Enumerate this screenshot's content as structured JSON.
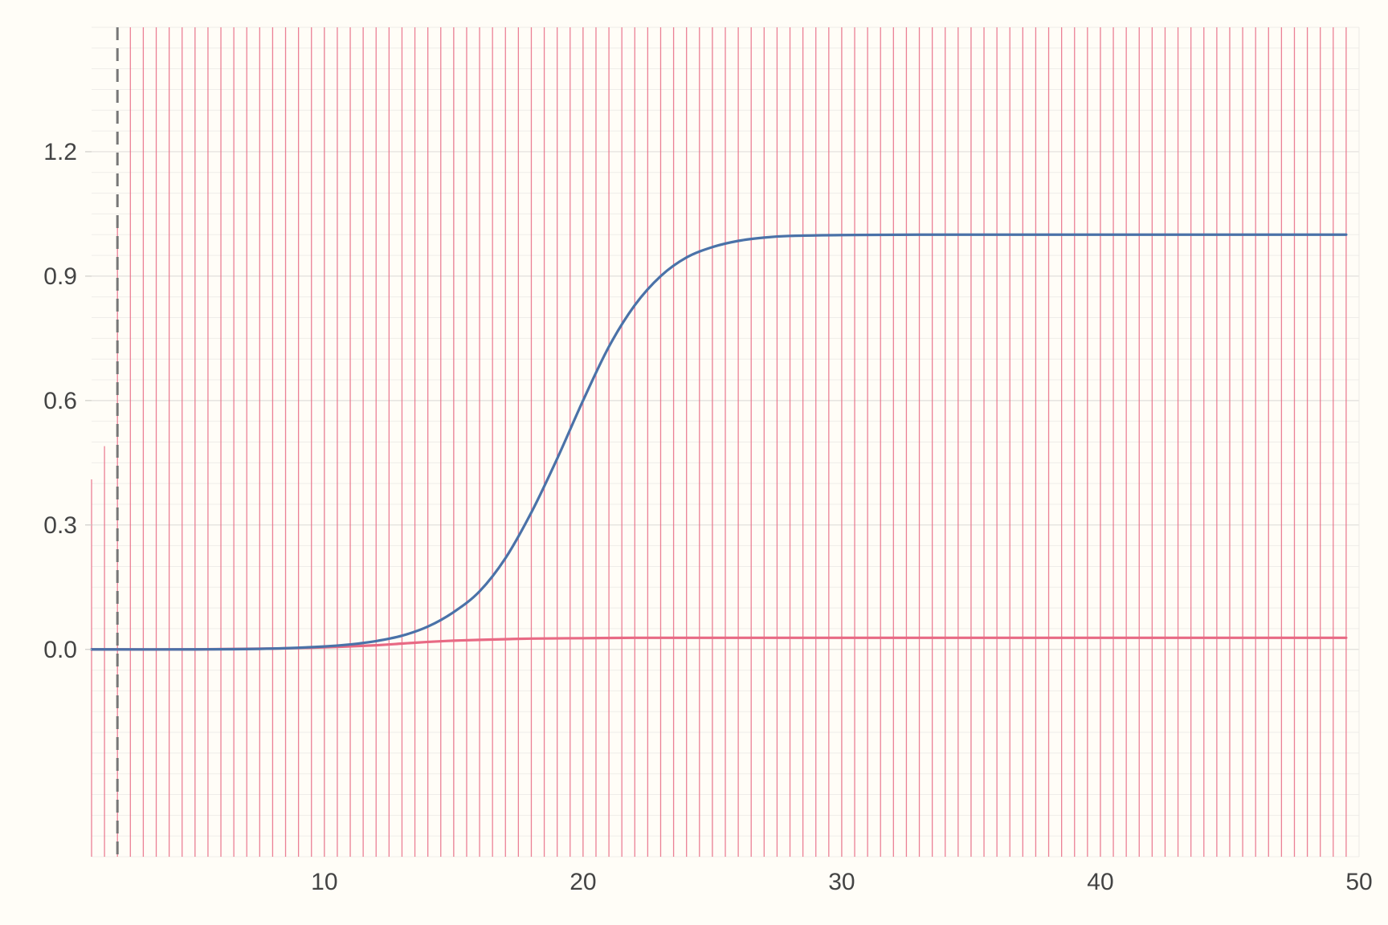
{
  "chart_data": {
    "type": "line",
    "title": "",
    "xlabel": "",
    "ylabel": "",
    "xlim": [
      1,
      50
    ],
    "ylim": [
      -0.5,
      1.5
    ],
    "x_ticks": [
      10,
      20,
      30,
      40,
      50
    ],
    "y_ticks": [
      0.0,
      0.3,
      0.6,
      0.9,
      1.2
    ],
    "x_tick_labels": [
      "10",
      "20",
      "30",
      "40",
      "50"
    ],
    "y_tick_labels": [
      "0.0",
      "0.3",
      "0.6",
      "0.9",
      "1.2"
    ],
    "grid": true,
    "legend": "none",
    "vline": {
      "x": 2,
      "style": "dashed",
      "color": "#777777"
    },
    "series": [
      {
        "type": "line",
        "color": "#4a72a8",
        "x": [
          1,
          5,
          8,
          10,
          11,
          12,
          13,
          14,
          15,
          16,
          17,
          18,
          19,
          20,
          21,
          22,
          23,
          24,
          25,
          26,
          27,
          28,
          30,
          33,
          40,
          49.5
        ],
        "y": [
          0.0,
          0.0,
          0.002,
          0.007,
          0.012,
          0.02,
          0.033,
          0.055,
          0.09,
          0.14,
          0.22,
          0.33,
          0.46,
          0.6,
          0.73,
          0.83,
          0.9,
          0.945,
          0.97,
          0.985,
          0.993,
          0.997,
          0.999,
          1.0,
          1.0,
          1.0
        ]
      },
      {
        "type": "line",
        "color": "#e86a84",
        "x": [
          1,
          5,
          8,
          10,
          12,
          13,
          14,
          15,
          16,
          18,
          20,
          22,
          25,
          30,
          49.5
        ],
        "y": [
          0.0,
          0.0,
          0.002,
          0.005,
          0.01,
          0.014,
          0.018,
          0.021,
          0.023,
          0.026,
          0.027,
          0.028,
          0.028,
          0.028,
          0.028
        ]
      },
      {
        "type": "stem",
        "color": "#e86a84",
        "x_start": 1,
        "x_step": 0.5,
        "count": 98,
        "y_first": [
          0.41,
          0.49,
          1.03
        ],
        "y_rest": 1.5
      }
    ]
  }
}
